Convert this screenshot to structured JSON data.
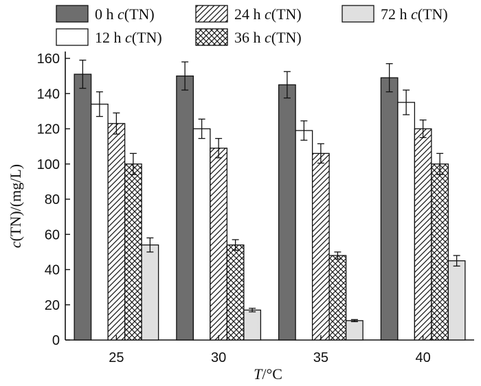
{
  "chart_data": {
    "type": "bar",
    "categories": [
      "25",
      "30",
      "35",
      "40"
    ],
    "xlabel": "T/°C",
    "ylabel": "c(TN)/(mg/L)",
    "ylim": [
      0,
      160
    ],
    "yticks": [
      0,
      20,
      40,
      60,
      80,
      100,
      120,
      140,
      160
    ],
    "grid": false,
    "legend_position": "top",
    "series": [
      {
        "name": "0 h c(TN)",
        "values": [
          151,
          150,
          145,
          149
        ],
        "errors": [
          8,
          8,
          7.5,
          8
        ],
        "fill": "solid",
        "color": "#6e6e6e"
      },
      {
        "name": "12 h c(TN)",
        "values": [
          134,
          120,
          119,
          135
        ],
        "errors": [
          7,
          5.5,
          5.5,
          7
        ],
        "fill": "none",
        "color": "#ffffff"
      },
      {
        "name": "24 h c(TN)",
        "values": [
          123,
          109,
          106,
          120
        ],
        "errors": [
          6,
          5.5,
          5.5,
          5
        ],
        "fill": "diagonal",
        "color": "#ffffff"
      },
      {
        "name": "36 h c(TN)",
        "values": [
          100,
          54,
          48,
          100
        ],
        "errors": [
          6,
          3,
          2,
          6
        ],
        "fill": "crosshatch",
        "color": "#ffffff"
      },
      {
        "name": "72 h c(TN)",
        "values": [
          54,
          17,
          11,
          45
        ],
        "errors": [
          4,
          1,
          0.6,
          3
        ],
        "fill": "solid",
        "color": "#e0e0e0"
      }
    ]
  }
}
